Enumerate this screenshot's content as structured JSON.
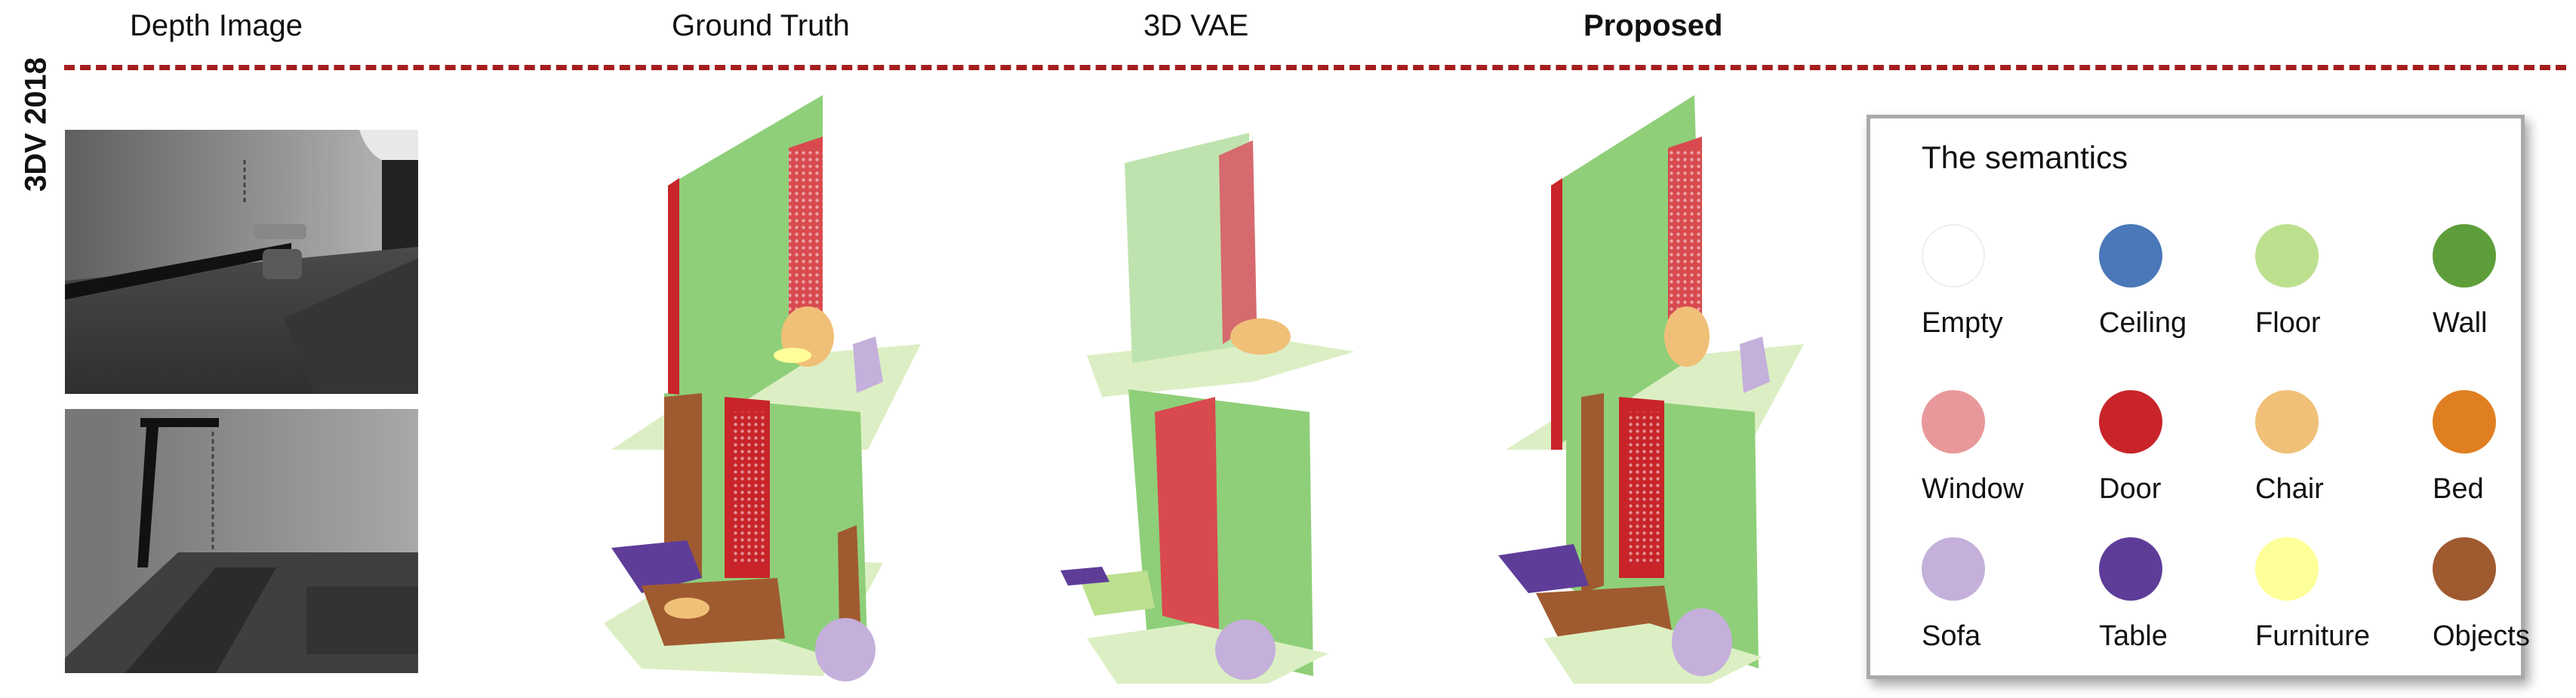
{
  "headers": {
    "depth": "Depth Image",
    "ground_truth": "Ground Truth",
    "vae": "3D VAE",
    "proposed": "Proposed"
  },
  "row_label": "3DV 2018",
  "legend": {
    "title": "The semantics",
    "items": [
      {
        "name": "Empty",
        "color": "#ffffff"
      },
      {
        "name": "Ceiling",
        "color": "#4a78b8"
      },
      {
        "name": "Floor",
        "color": "#bde08f"
      },
      {
        "name": "Wall",
        "color": "#5e9e3a"
      },
      {
        "name": "Window",
        "color": "#e8989a"
      },
      {
        "name": "Door",
        "color": "#c8242a"
      },
      {
        "name": "Chair",
        "color": "#f0c078"
      },
      {
        "name": "Bed",
        "color": "#e07f22"
      },
      {
        "name": "Sofa",
        "color": "#c4b0da"
      },
      {
        "name": "Table",
        "color": "#5e3d99"
      },
      {
        "name": "Furniture",
        "color": "#ffff99"
      },
      {
        "name": "Objects",
        "color": "#a05a30"
      }
    ]
  },
  "colors": {
    "divider": "#a51d1d",
    "wall_recon": "#8fcf79",
    "floor_recon": "#dcefc4"
  }
}
